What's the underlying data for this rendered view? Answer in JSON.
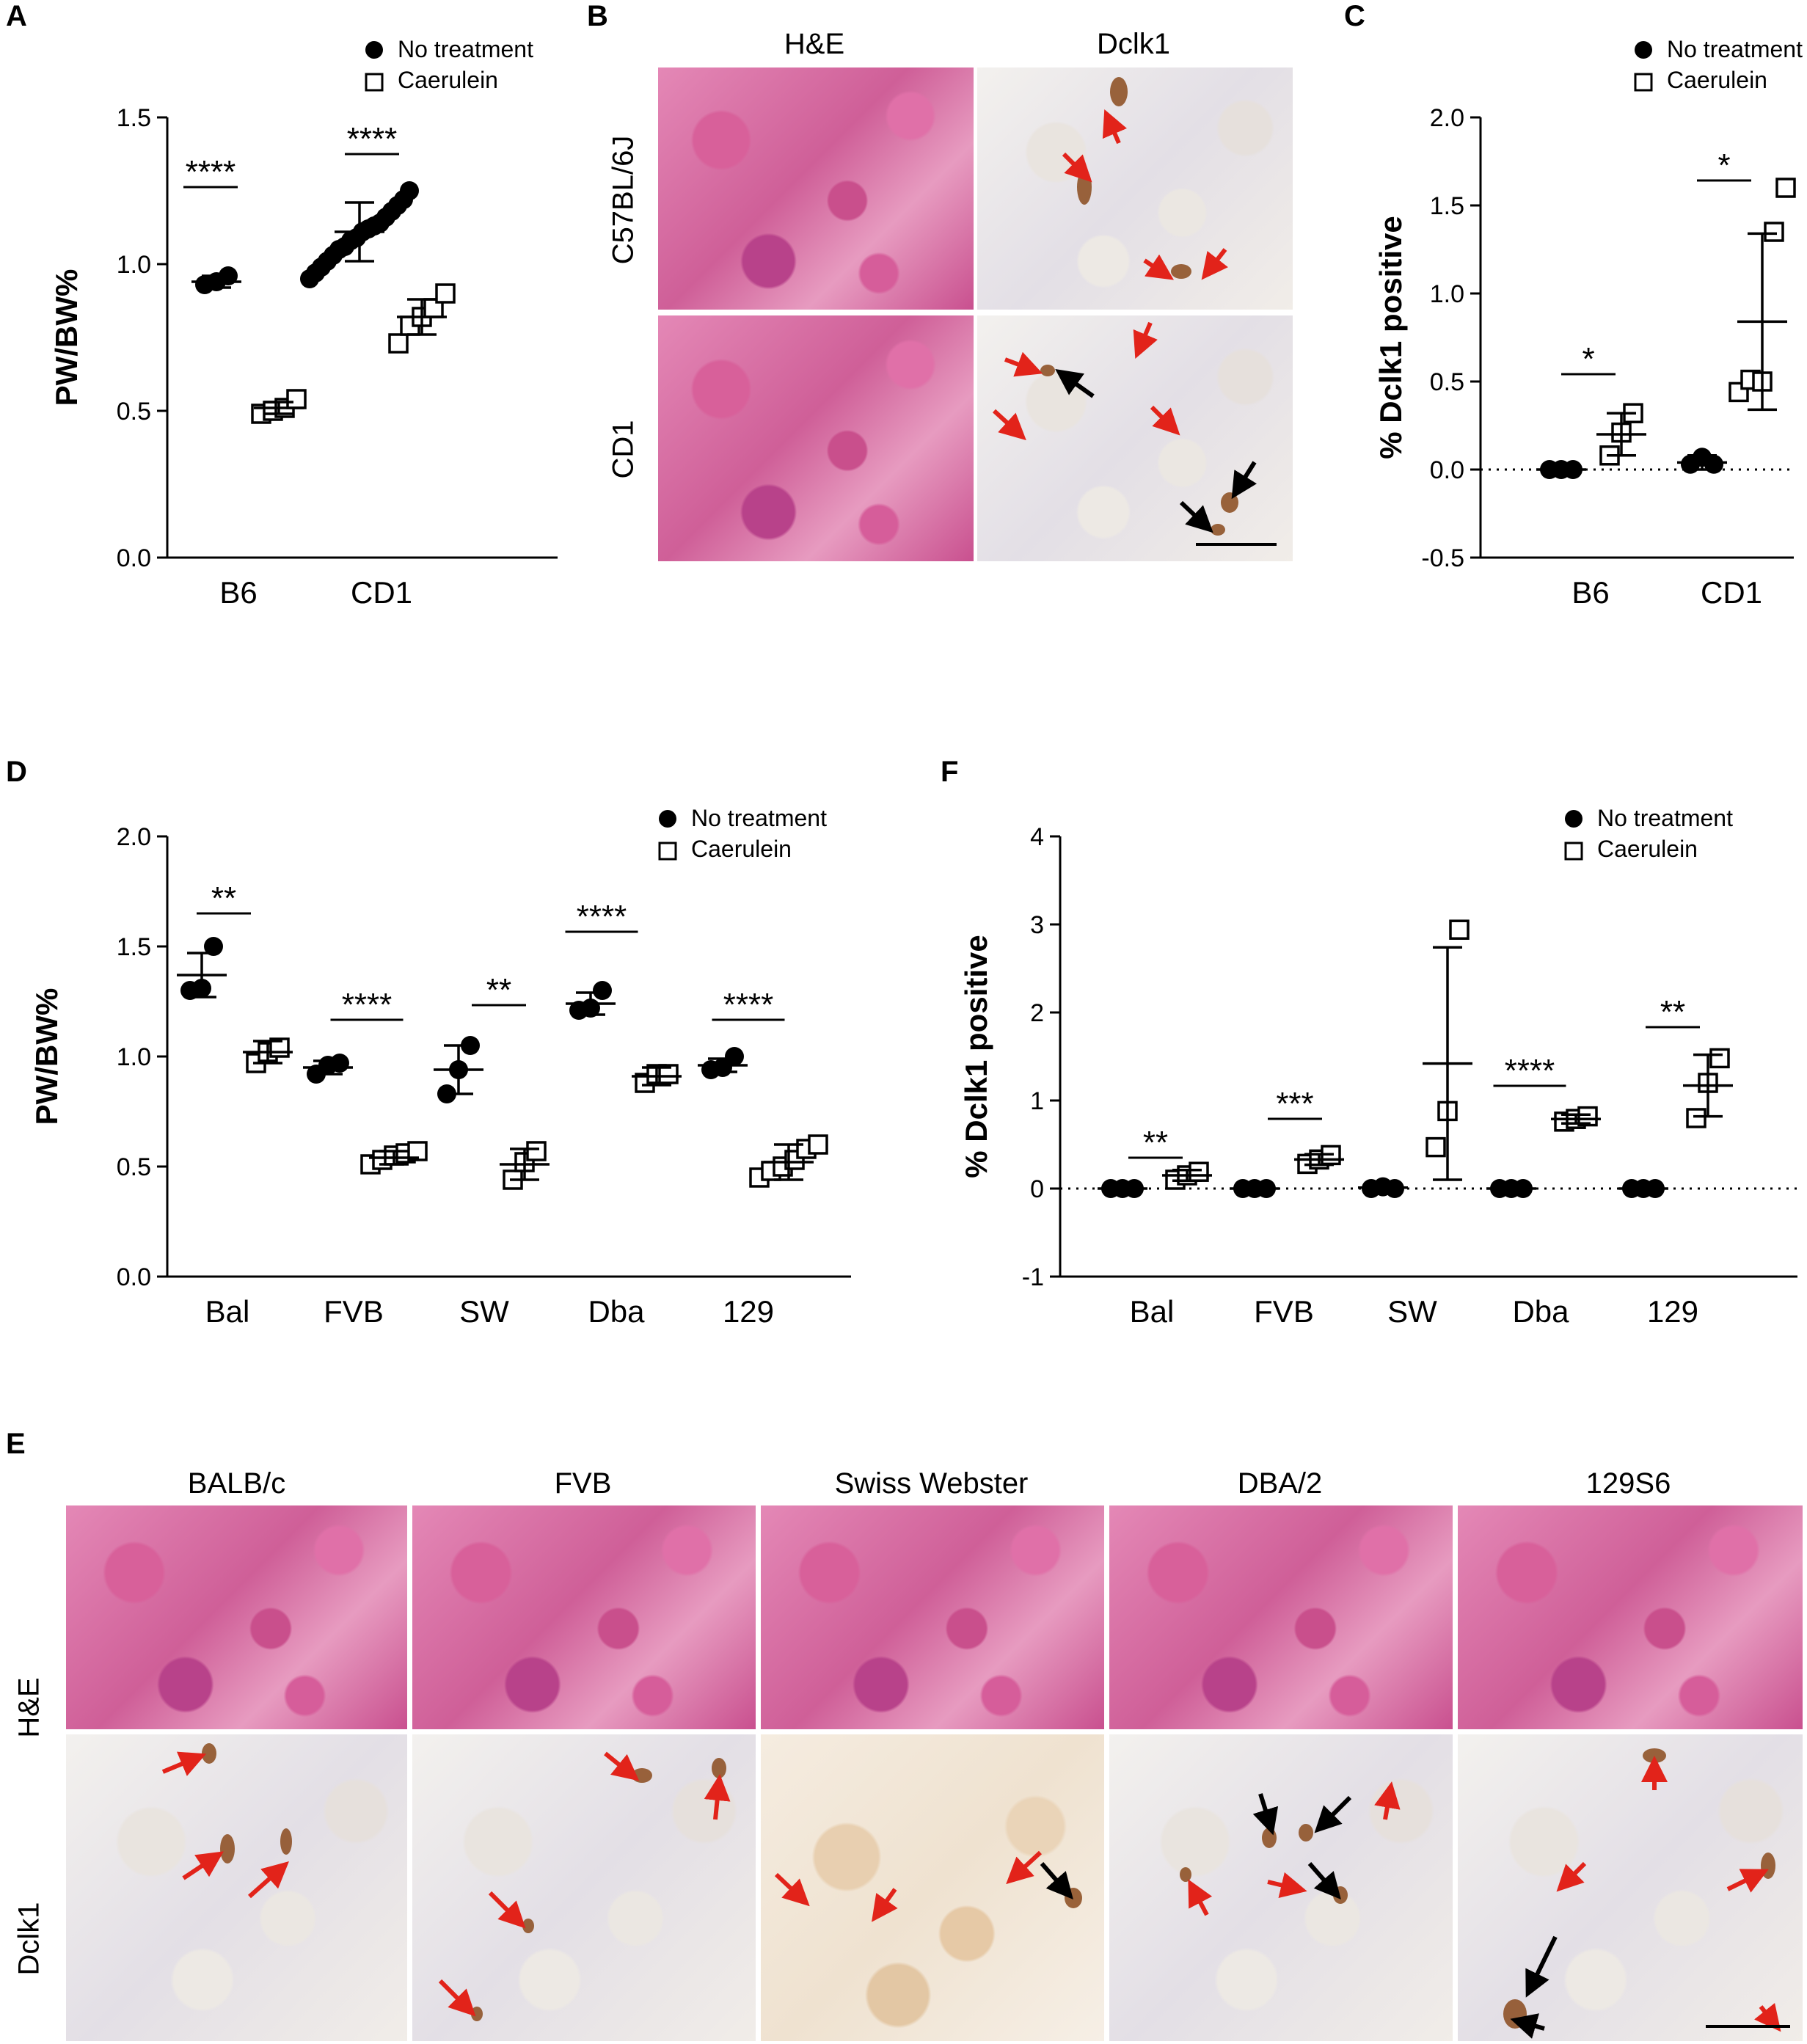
{
  "panels": {
    "A": "A",
    "B": "B",
    "C": "C",
    "D": "D",
    "E": "E",
    "F": "F"
  },
  "legend": {
    "filled": "No treatment",
    "open": "Caerulein"
  },
  "colors": {
    "arrow_red": "#e2231a",
    "arrow_black": "#000000",
    "he_pink": "#d8609a",
    "dclk_stain": "#8a4a1c"
  },
  "chart_data": [
    {
      "id": "A",
      "type": "scatter",
      "ylabel": "PW/BW%",
      "ylim": [
        0,
        1.5
      ],
      "yticks": [
        "0.0",
        "0.5",
        "1.0",
        "1.5"
      ],
      "categories": [
        "B6",
        "CD1"
      ],
      "series": [
        {
          "name": "No treatment",
          "marker": "filled-circle",
          "groups": [
            {
              "cat": "B6",
              "mean": 0.94,
              "sd": 0.02,
              "points": [
                0.93,
                0.94,
                0.96
              ]
            },
            {
              "cat": "CD1",
              "mean": 1.11,
              "sd": 0.1,
              "points": [
                0.95,
                0.97,
                0.99,
                1.01,
                1.03,
                1.05,
                1.06,
                1.08,
                1.09,
                1.11,
                1.12,
                1.13,
                1.14,
                1.16,
                1.18,
                1.2,
                1.22,
                1.25
              ]
            }
          ]
        },
        {
          "name": "Caerulein",
          "marker": "open-square",
          "groups": [
            {
              "cat": "B6",
              "mean": 0.51,
              "sd": 0.02,
              "points": [
                0.49,
                0.5,
                0.51,
                0.54
              ]
            },
            {
              "cat": "CD1",
              "mean": 0.82,
              "sd": 0.06,
              "points": [
                0.73,
                0.79,
                0.82,
                0.85,
                0.9
              ]
            }
          ]
        }
      ],
      "significance": [
        "****",
        "****"
      ]
    },
    {
      "id": "C",
      "type": "scatter",
      "ylabel": "% Dclk1 positive",
      "ylim": [
        -0.5,
        2.0
      ],
      "yticks": [
        "-0.5",
        "0.0",
        "0.5",
        "1.0",
        "1.5",
        "2.0"
      ],
      "categories": [
        "B6",
        "CD1"
      ],
      "series": [
        {
          "name": "No treatment",
          "marker": "filled-circle",
          "groups": [
            {
              "cat": "B6",
              "mean": 0,
              "sd": 0,
              "points": [
                0,
                0,
                0
              ]
            },
            {
              "cat": "CD1",
              "mean": 0.04,
              "sd": 0.04,
              "points": [
                0.03,
                0.07,
                0.03
              ]
            }
          ]
        },
        {
          "name": "Caerulein",
          "marker": "open-square",
          "groups": [
            {
              "cat": "B6",
              "mean": 0.2,
              "sd": 0.12,
              "points": [
                0.08,
                0.21,
                0.32
              ]
            },
            {
              "cat": "CD1",
              "mean": 0.84,
              "sd": 0.5,
              "points": [
                0.44,
                0.51,
                0.5,
                1.35,
                1.6
              ]
            }
          ]
        }
      ],
      "significance": [
        "*",
        "*"
      ]
    },
    {
      "id": "D",
      "type": "scatter",
      "ylabel": "PW/BW%",
      "ylim": [
        0,
        2.0
      ],
      "yticks": [
        "0.0",
        "0.5",
        "1.0",
        "1.5",
        "2.0"
      ],
      "categories": [
        "Bal",
        "FVB",
        "SW",
        "Dba",
        "129"
      ],
      "series": [
        {
          "name": "No treatment",
          "marker": "filled-circle",
          "groups": [
            {
              "cat": "Bal",
              "mean": 1.37,
              "sd": 0.1,
              "points": [
                1.3,
                1.31,
                1.5
              ]
            },
            {
              "cat": "FVB",
              "mean": 0.95,
              "sd": 0.03,
              "points": [
                0.92,
                0.96,
                0.97
              ]
            },
            {
              "cat": "SW",
              "mean": 0.94,
              "sd": 0.11,
              "points": [
                0.83,
                0.94,
                1.05
              ]
            },
            {
              "cat": "Dba",
              "mean": 1.24,
              "sd": 0.05,
              "points": [
                1.21,
                1.22,
                1.3
              ]
            },
            {
              "cat": "129",
              "mean": 0.96,
              "sd": 0.03,
              "points": [
                0.94,
                0.95,
                1.0
              ]
            }
          ]
        },
        {
          "name": "Caerulein",
          "marker": "open-square",
          "groups": [
            {
              "cat": "Bal",
              "mean": 1.02,
              "sd": 0.05,
              "points": [
                0.97,
                1.02,
                1.04
              ]
            },
            {
              "cat": "FVB",
              "mean": 0.54,
              "sd": 0.03,
              "points": [
                0.51,
                0.53,
                0.55,
                0.56,
                0.57
              ]
            },
            {
              "cat": "SW",
              "mean": 0.51,
              "sd": 0.07,
              "points": [
                0.44,
                0.52,
                0.57
              ]
            },
            {
              "cat": "Dba",
              "mean": 0.91,
              "sd": 0.04,
              "points": [
                0.88,
                0.92,
                0.92
              ]
            },
            {
              "cat": "129",
              "mean": 0.52,
              "sd": 0.08,
              "points": [
                0.45,
                0.48,
                0.5,
                0.53,
                0.58,
                0.6
              ]
            }
          ]
        }
      ],
      "significance": [
        "**",
        "****",
        "**",
        "****",
        "****"
      ]
    },
    {
      "id": "F",
      "type": "scatter",
      "ylabel": "% Dclk1 positive",
      "ylim": [
        -1,
        4
      ],
      "yticks": [
        "-1",
        "0",
        "1",
        "2",
        "3",
        "4"
      ],
      "categories": [
        "Bal",
        "FVB",
        "SW",
        "Dba",
        "129"
      ],
      "series": [
        {
          "name": "No treatment",
          "marker": "filled-circle",
          "groups": [
            {
              "cat": "Bal",
              "mean": 0,
              "sd": 0,
              "points": [
                0,
                0,
                0
              ]
            },
            {
              "cat": "FVB",
              "mean": 0,
              "sd": 0,
              "points": [
                0,
                0,
                0
              ]
            },
            {
              "cat": "SW",
              "mean": 0.01,
              "sd": 0.01,
              "points": [
                0,
                0.02,
                0
              ]
            },
            {
              "cat": "Dba",
              "mean": 0,
              "sd": 0,
              "points": [
                0,
                0,
                0
              ]
            },
            {
              "cat": "129",
              "mean": 0,
              "sd": 0,
              "points": [
                0,
                0,
                0
              ]
            }
          ]
        },
        {
          "name": "Caerulein",
          "marker": "open-square",
          "groups": [
            {
              "cat": "Bal",
              "mean": 0.15,
              "sd": 0.06,
              "points": [
                0.1,
                0.15,
                0.19
              ]
            },
            {
              "cat": "FVB",
              "mean": 0.33,
              "sd": 0.06,
              "points": [
                0.28,
                0.33,
                0.38
              ]
            },
            {
              "cat": "SW",
              "mean": 1.42,
              "sd": 1.32,
              "points": [
                0.47,
                0.88,
                2.94
              ]
            },
            {
              "cat": "Dba",
              "mean": 0.79,
              "sd": 0.05,
              "points": [
                0.76,
                0.79,
                0.82
              ]
            },
            {
              "cat": "129",
              "mean": 1.17,
              "sd": 0.35,
              "points": [
                0.8,
                1.2,
                1.48
              ]
            }
          ]
        }
      ],
      "significance": [
        "**",
        "***",
        "",
        "****",
        "**"
      ]
    }
  ],
  "micrographs": {
    "B": {
      "col_headers": [
        "H&E",
        "Dclk1"
      ],
      "row_labels": [
        "C57BL/6J",
        "CD1"
      ]
    },
    "E": {
      "col_headers": [
        "BALB/c",
        "FVB",
        "Swiss Webster",
        "DBA/2",
        "129S6"
      ],
      "row_labels": [
        "H&E",
        "Dclk1"
      ]
    }
  }
}
